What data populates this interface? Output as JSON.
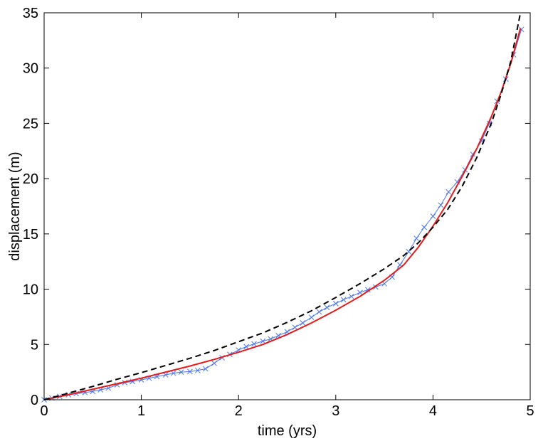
{
  "chart_data": {
    "type": "line",
    "title": "",
    "xlabel": "time (yrs)",
    "ylabel": "displacement (m)",
    "xlim": [
      0,
      5
    ],
    "ylim": [
      0,
      35
    ],
    "xticks": [
      0,
      1,
      2,
      3,
      4,
      5
    ],
    "yticks": [
      0,
      5,
      10,
      15,
      20,
      25,
      30,
      35
    ],
    "grid": false,
    "legend": "none",
    "series": [
      {
        "style": "blue-line-x-markers",
        "color": "#4a74f0",
        "x": [
          0,
          0.08,
          0.16,
          0.25,
          0.33,
          0.42,
          0.5,
          0.58,
          0.66,
          0.75,
          0.83,
          0.91,
          1.0,
          1.08,
          1.16,
          1.25,
          1.33,
          1.41,
          1.5,
          1.58,
          1.66,
          1.75,
          1.83,
          1.91,
          2.0,
          2.08,
          2.16,
          2.25,
          2.33,
          2.41,
          2.5,
          2.58,
          2.66,
          2.75,
          2.83,
          2.91,
          3.0,
          3.08,
          3.16,
          3.25,
          3.33,
          3.41,
          3.5,
          3.58,
          3.66,
          3.75,
          3.83,
          3.91,
          4.0,
          4.08,
          4.16,
          4.25,
          4.33,
          4.41,
          4.5,
          4.58,
          4.66,
          4.75,
          4.83,
          4.91
        ],
        "y": [
          0.0,
          0.15,
          0.3,
          0.45,
          0.55,
          0.65,
          0.75,
          0.9,
          1.05,
          1.35,
          1.55,
          1.65,
          1.8,
          1.95,
          2.1,
          2.25,
          2.4,
          2.5,
          2.55,
          2.65,
          2.8,
          3.3,
          3.8,
          4.1,
          4.5,
          4.8,
          5.05,
          5.3,
          5.5,
          5.8,
          6.15,
          6.55,
          6.95,
          7.45,
          7.95,
          8.35,
          8.7,
          9.05,
          9.35,
          9.7,
          9.95,
          10.2,
          10.5,
          11.1,
          12.2,
          13.4,
          14.6,
          15.6,
          16.6,
          17.6,
          18.8,
          19.7,
          20.8,
          22.2,
          23.4,
          25.0,
          27.0,
          29.0,
          31.2,
          33.5
        ]
      },
      {
        "style": "red-solid",
        "color": "#e41b1b",
        "x": [
          0,
          0.25,
          0.5,
          0.75,
          1.0,
          1.25,
          1.5,
          1.75,
          2.0,
          2.25,
          2.5,
          2.75,
          3.0,
          3.25,
          3.5,
          3.7,
          3.85,
          4.0,
          4.15,
          4.3,
          4.45,
          4.6,
          4.7,
          4.8,
          4.9
        ],
        "y": [
          0,
          0.45,
          0.95,
          1.45,
          1.95,
          2.5,
          3.05,
          3.65,
          4.3,
          5.0,
          5.9,
          6.95,
          8.1,
          9.35,
          10.8,
          12.2,
          13.8,
          15.7,
          17.8,
          20.2,
          22.7,
          25.6,
          27.8,
          30.4,
          33.6
        ]
      },
      {
        "style": "black-dashed",
        "color": "#000000",
        "x": [
          0,
          0.25,
          0.5,
          0.75,
          1.0,
          1.25,
          1.5,
          1.75,
          2.0,
          2.25,
          2.5,
          2.75,
          3.0,
          3.25,
          3.5,
          3.7,
          3.85,
          4.0,
          4.15,
          4.3,
          4.45,
          4.6,
          4.7,
          4.8,
          4.9
        ],
        "y": [
          0,
          0.6,
          1.2,
          1.85,
          2.45,
          3.1,
          3.75,
          4.45,
          5.25,
          6.05,
          7.0,
          8.05,
          9.25,
          10.5,
          11.85,
          13.05,
          14.2,
          15.6,
          17.2,
          19.3,
          21.9,
          25.0,
          27.6,
          30.6,
          35.0
        ]
      }
    ]
  }
}
